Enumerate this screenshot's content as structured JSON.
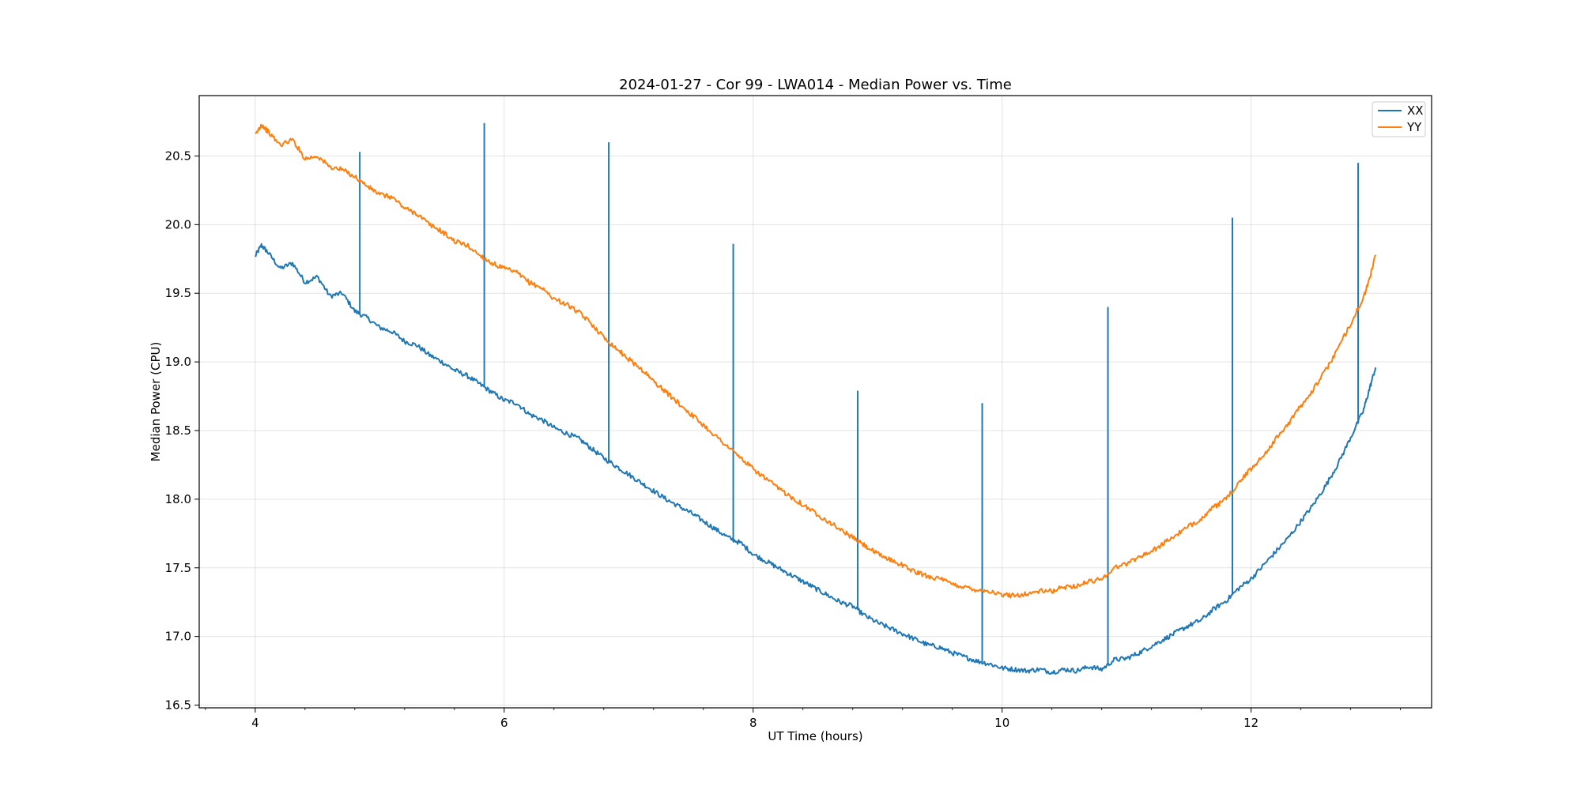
{
  "chart_data": {
    "type": "line",
    "title": "2024-01-27 - Cor 99 - LWA014 - Median Power vs. Time",
    "xlabel": "UT Time (hours)",
    "ylabel": "Median Power (CPU)",
    "xlim": [
      3.55,
      13.45
    ],
    "ylim": [
      16.48,
      20.94
    ],
    "x_ticks": [
      4,
      6,
      8,
      10,
      12
    ],
    "x_tick_labels": [
      "4",
      "6",
      "8",
      "10",
      "12"
    ],
    "y_ticks": [
      16.5,
      17.0,
      17.5,
      18.0,
      18.5,
      19.0,
      19.5,
      20.0,
      20.5
    ],
    "y_tick_labels": [
      "16.5",
      "17.0",
      "17.5",
      "18.0",
      "18.5",
      "19.0",
      "19.5",
      "20.0",
      "20.5"
    ],
    "grid": true,
    "legend": "top-right",
    "series": [
      {
        "name": "XX",
        "color": "#1f77b4",
        "points": [
          [
            4.0,
            19.77
          ],
          [
            4.05,
            19.85
          ],
          [
            4.1,
            19.8
          ],
          [
            4.2,
            19.68
          ],
          [
            4.3,
            19.72
          ],
          [
            4.4,
            19.58
          ],
          [
            4.5,
            19.62
          ],
          [
            4.6,
            19.48
          ],
          [
            4.7,
            19.5
          ],
          [
            4.8,
            19.37
          ],
          [
            4.9,
            19.32
          ],
          [
            5.0,
            19.25
          ],
          [
            5.1,
            19.22
          ],
          [
            5.2,
            19.15
          ],
          [
            5.3,
            19.12
          ],
          [
            5.4,
            19.05
          ],
          [
            5.5,
            19.0
          ],
          [
            5.6,
            18.94
          ],
          [
            5.7,
            18.9
          ],
          [
            5.8,
            18.84
          ],
          [
            5.9,
            18.78
          ],
          [
            6.0,
            18.72
          ],
          [
            6.1,
            18.7
          ],
          [
            6.2,
            18.62
          ],
          [
            6.3,
            18.58
          ],
          [
            6.4,
            18.52
          ],
          [
            6.5,
            18.48
          ],
          [
            6.6,
            18.44
          ],
          [
            6.7,
            18.37
          ],
          [
            6.8,
            18.3
          ],
          [
            6.9,
            18.24
          ],
          [
            7.0,
            18.18
          ],
          [
            7.1,
            18.12
          ],
          [
            7.2,
            18.06
          ],
          [
            7.3,
            18.0
          ],
          [
            7.4,
            17.95
          ],
          [
            7.5,
            17.9
          ],
          [
            7.6,
            17.84
          ],
          [
            7.7,
            17.78
          ],
          [
            7.8,
            17.72
          ],
          [
            7.9,
            17.68
          ],
          [
            8.0,
            17.6
          ],
          [
            8.1,
            17.55
          ],
          [
            8.2,
            17.5
          ],
          [
            8.3,
            17.45
          ],
          [
            8.4,
            17.4
          ],
          [
            8.5,
            17.35
          ],
          [
            8.6,
            17.3
          ],
          [
            8.7,
            17.25
          ],
          [
            8.8,
            17.22
          ],
          [
            8.9,
            17.15
          ],
          [
            9.0,
            17.1
          ],
          [
            9.1,
            17.06
          ],
          [
            9.2,
            17.02
          ],
          [
            9.3,
            16.98
          ],
          [
            9.4,
            16.94
          ],
          [
            9.5,
            16.92
          ],
          [
            9.6,
            16.88
          ],
          [
            9.7,
            16.85
          ],
          [
            9.8,
            16.82
          ],
          [
            9.9,
            16.8
          ],
          [
            10.0,
            16.77
          ],
          [
            10.1,
            16.76
          ],
          [
            10.2,
            16.75
          ],
          [
            10.3,
            16.76
          ],
          [
            10.4,
            16.74
          ],
          [
            10.5,
            16.76
          ],
          [
            10.6,
            16.75
          ],
          [
            10.7,
            16.78
          ],
          [
            10.8,
            16.76
          ],
          [
            10.9,
            16.83
          ],
          [
            11.0,
            16.84
          ],
          [
            11.1,
            16.88
          ],
          [
            11.2,
            16.93
          ],
          [
            11.3,
            16.98
          ],
          [
            11.4,
            17.03
          ],
          [
            11.5,
            17.08
          ],
          [
            11.6,
            17.12
          ],
          [
            11.7,
            17.2
          ],
          [
            11.8,
            17.26
          ],
          [
            11.9,
            17.35
          ],
          [
            12.0,
            17.42
          ],
          [
            12.1,
            17.52
          ],
          [
            12.2,
            17.62
          ],
          [
            12.3,
            17.72
          ],
          [
            12.4,
            17.84
          ],
          [
            12.5,
            17.96
          ],
          [
            12.6,
            18.1
          ],
          [
            12.7,
            18.26
          ],
          [
            12.8,
            18.45
          ],
          [
            12.9,
            18.64
          ],
          [
            12.95,
            18.8
          ],
          [
            13.0,
            18.96
          ]
        ],
        "spikes": [
          [
            4.84,
            20.53
          ],
          [
            5.84,
            20.74
          ],
          [
            6.84,
            20.6
          ],
          [
            7.84,
            19.86
          ],
          [
            8.84,
            18.79
          ],
          [
            9.84,
            18.7
          ],
          [
            10.85,
            19.4
          ],
          [
            11.85,
            20.05
          ],
          [
            12.86,
            20.45
          ]
        ]
      },
      {
        "name": "YY",
        "color": "#ff7f0e",
        "points": [
          [
            4.0,
            20.65
          ],
          [
            4.05,
            20.73
          ],
          [
            4.1,
            20.68
          ],
          [
            4.2,
            20.58
          ],
          [
            4.3,
            20.62
          ],
          [
            4.4,
            20.48
          ],
          [
            4.5,
            20.5
          ],
          [
            4.6,
            20.42
          ],
          [
            4.7,
            20.4
          ],
          [
            4.8,
            20.35
          ],
          [
            4.9,
            20.28
          ],
          [
            5.0,
            20.22
          ],
          [
            5.1,
            20.2
          ],
          [
            5.2,
            20.12
          ],
          [
            5.3,
            20.08
          ],
          [
            5.4,
            20.0
          ],
          [
            5.5,
            19.95
          ],
          [
            5.6,
            19.88
          ],
          [
            5.7,
            19.85
          ],
          [
            5.8,
            19.78
          ],
          [
            5.9,
            19.72
          ],
          [
            6.0,
            19.68
          ],
          [
            6.1,
            19.65
          ],
          [
            6.2,
            19.58
          ],
          [
            6.3,
            19.54
          ],
          [
            6.4,
            19.46
          ],
          [
            6.5,
            19.42
          ],
          [
            6.6,
            19.36
          ],
          [
            6.7,
            19.28
          ],
          [
            6.8,
            19.18
          ],
          [
            6.9,
            19.1
          ],
          [
            7.0,
            19.02
          ],
          [
            7.1,
            18.95
          ],
          [
            7.2,
            18.86
          ],
          [
            7.3,
            18.78
          ],
          [
            7.4,
            18.7
          ],
          [
            7.5,
            18.62
          ],
          [
            7.6,
            18.54
          ],
          [
            7.7,
            18.46
          ],
          [
            7.8,
            18.38
          ],
          [
            7.9,
            18.3
          ],
          [
            8.0,
            18.22
          ],
          [
            8.1,
            18.15
          ],
          [
            8.2,
            18.08
          ],
          [
            8.3,
            18.02
          ],
          [
            8.4,
            17.96
          ],
          [
            8.5,
            17.9
          ],
          [
            8.6,
            17.84
          ],
          [
            8.7,
            17.78
          ],
          [
            8.8,
            17.72
          ],
          [
            8.9,
            17.66
          ],
          [
            9.0,
            17.6
          ],
          [
            9.1,
            17.56
          ],
          [
            9.2,
            17.52
          ],
          [
            9.3,
            17.47
          ],
          [
            9.4,
            17.44
          ],
          [
            9.5,
            17.42
          ],
          [
            9.6,
            17.38
          ],
          [
            9.7,
            17.36
          ],
          [
            9.8,
            17.34
          ],
          [
            9.9,
            17.33
          ],
          [
            10.0,
            17.3
          ],
          [
            10.1,
            17.3
          ],
          [
            10.2,
            17.31
          ],
          [
            10.3,
            17.33
          ],
          [
            10.4,
            17.33
          ],
          [
            10.5,
            17.36
          ],
          [
            10.6,
            17.37
          ],
          [
            10.7,
            17.4
          ],
          [
            10.8,
            17.42
          ],
          [
            10.9,
            17.5
          ],
          [
            11.0,
            17.53
          ],
          [
            11.1,
            17.58
          ],
          [
            11.2,
            17.62
          ],
          [
            11.3,
            17.68
          ],
          [
            11.4,
            17.74
          ],
          [
            11.5,
            17.8
          ],
          [
            11.6,
            17.86
          ],
          [
            11.7,
            17.94
          ],
          [
            11.8,
            18.0
          ],
          [
            11.9,
            18.12
          ],
          [
            12.0,
            18.22
          ],
          [
            12.1,
            18.32
          ],
          [
            12.2,
            18.44
          ],
          [
            12.3,
            18.55
          ],
          [
            12.4,
            18.68
          ],
          [
            12.5,
            18.8
          ],
          [
            12.6,
            18.94
          ],
          [
            12.7,
            19.1
          ],
          [
            12.8,
            19.28
          ],
          [
            12.9,
            19.46
          ],
          [
            12.95,
            19.6
          ],
          [
            13.0,
            19.78
          ]
        ],
        "spikes": []
      }
    ]
  }
}
